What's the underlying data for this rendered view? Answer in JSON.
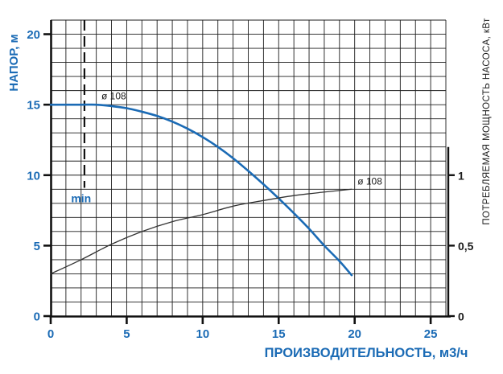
{
  "accent_color": "#1b6bb5",
  "grid_color": "#1c1c1c",
  "chart_data": {
    "type": "line",
    "title": "",
    "grid": "on",
    "x_axis": {
      "label": "ПРОИЗВОДИТЕЛЬНОСТЬ, м3/ч",
      "min": 0,
      "max": 26,
      "major_ticks": [
        0,
        5,
        10,
        15,
        20,
        25
      ],
      "minor_step": 1
    },
    "y_left": {
      "label": "НАПОР, м",
      "min": 0,
      "max": 21,
      "major_ticks": [
        0,
        5,
        10,
        15,
        20
      ],
      "minor_step": 1
    },
    "y_right": {
      "label": "ПОТРЕБЛЯЕМАЯ МОЩНОСТЬ НАСОСА, кВт",
      "min": 0,
      "max": 2.1,
      "axis_line_top_value": 1.2,
      "ticks": [
        {
          "value": 0,
          "label": "0"
        },
        {
          "value": 0.5,
          "label": "0,5"
        },
        {
          "value": 1,
          "label": "1"
        }
      ]
    },
    "series": [
      {
        "id": "head-curve",
        "name": "ø 108",
        "axis": "left",
        "color": "#1b6bb5",
        "stroke_width": 2.6,
        "points": [
          [
            0,
            15
          ],
          [
            2,
            15
          ],
          [
            3,
            15
          ],
          [
            4,
            14.9
          ],
          [
            5,
            14.75
          ],
          [
            6,
            14.5
          ],
          [
            7,
            14.2
          ],
          [
            8,
            13.8
          ],
          [
            9,
            13.3
          ],
          [
            10,
            12.7
          ],
          [
            11,
            12.0
          ],
          [
            12,
            11.2
          ],
          [
            13,
            10.3
          ],
          [
            14,
            9.35
          ],
          [
            15,
            8.35
          ],
          [
            16,
            7.3
          ],
          [
            17,
            6.2
          ],
          [
            18,
            5.0
          ],
          [
            19,
            3.9
          ],
          [
            19.8,
            2.9
          ]
        ],
        "annotation": {
          "text": "ø 108",
          "x": 4.15,
          "y": 15.6
        }
      },
      {
        "id": "power-curve",
        "name": "ø 108",
        "axis": "right",
        "color": "#333333",
        "stroke_width": 1.3,
        "points": [
          [
            0,
            0.3
          ],
          [
            2,
            0.4
          ],
          [
            4,
            0.51
          ],
          [
            6,
            0.6
          ],
          [
            8,
            0.67
          ],
          [
            10,
            0.72
          ],
          [
            12,
            0.78
          ],
          [
            14,
            0.82
          ],
          [
            16,
            0.855
          ],
          [
            18,
            0.88
          ],
          [
            19.8,
            0.9
          ]
        ],
        "annotation": {
          "text": "ø 108",
          "x": 21.0,
          "y": 0.955
        }
      }
    ],
    "min_marker": {
      "x": 2.22,
      "line_from": 21,
      "line_to": 9.1,
      "label": "min",
      "label_x": 2.0,
      "label_y": 8.35
    }
  }
}
